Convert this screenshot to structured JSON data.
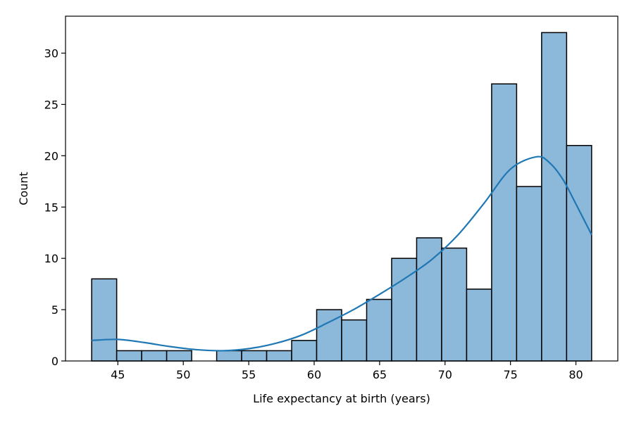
{
  "chart_data": {
    "type": "bar",
    "subtype": "histogram",
    "title": "",
    "xlabel": "Life expectancy at birth (years)",
    "ylabel": "Count",
    "xlim": [
      41.0,
      83.2
    ],
    "ylim": [
      0,
      33.6
    ],
    "x_ticks": [
      45,
      50,
      55,
      60,
      65,
      70,
      75,
      80
    ],
    "y_ticks": [
      0,
      5,
      10,
      15,
      20,
      25,
      30
    ],
    "grid": false,
    "bar_color": "#8cb8da",
    "bar_edge_color": "#000000",
    "kde_color": "#1f77b4",
    "bins": [
      {
        "start": 43.0,
        "end": 44.91,
        "count": 8
      },
      {
        "start": 44.91,
        "end": 46.82,
        "count": 1
      },
      {
        "start": 46.82,
        "end": 48.73,
        "count": 1
      },
      {
        "start": 48.73,
        "end": 50.64,
        "count": 1
      },
      {
        "start": 50.64,
        "end": 52.55,
        "count": 0
      },
      {
        "start": 52.55,
        "end": 54.46,
        "count": 1
      },
      {
        "start": 54.46,
        "end": 56.37,
        "count": 1
      },
      {
        "start": 56.37,
        "end": 58.28,
        "count": 1
      },
      {
        "start": 58.28,
        "end": 60.19,
        "count": 2
      },
      {
        "start": 60.19,
        "end": 62.1,
        "count": 5
      },
      {
        "start": 62.1,
        "end": 64.01,
        "count": 4
      },
      {
        "start": 64.01,
        "end": 65.92,
        "count": 6
      },
      {
        "start": 65.92,
        "end": 67.83,
        "count": 10
      },
      {
        "start": 67.83,
        "end": 69.74,
        "count": 12
      },
      {
        "start": 69.74,
        "end": 71.65,
        "count": 11
      },
      {
        "start": 71.65,
        "end": 73.56,
        "count": 7
      },
      {
        "start": 73.56,
        "end": 75.47,
        "count": 27
      },
      {
        "start": 75.47,
        "end": 77.38,
        "count": 17
      },
      {
        "start": 77.38,
        "end": 79.29,
        "count": 32
      },
      {
        "start": 79.29,
        "end": 81.2,
        "count": 21
      }
    ],
    "kde_curve": [
      {
        "x": 43.0,
        "y": 2.0
      },
      {
        "x": 45.0,
        "y": 2.1
      },
      {
        "x": 47.0,
        "y": 1.8
      },
      {
        "x": 49.0,
        "y": 1.4
      },
      {
        "x": 51.0,
        "y": 1.1
      },
      {
        "x": 53.0,
        "y": 1.0
      },
      {
        "x": 55.0,
        "y": 1.2
      },
      {
        "x": 57.0,
        "y": 1.7
      },
      {
        "x": 59.0,
        "y": 2.5
      },
      {
        "x": 61.0,
        "y": 3.7
      },
      {
        "x": 63.0,
        "y": 5.0
      },
      {
        "x": 65.0,
        "y": 6.5
      },
      {
        "x": 67.0,
        "y": 8.1
      },
      {
        "x": 69.0,
        "y": 9.9
      },
      {
        "x": 71.0,
        "y": 12.3
      },
      {
        "x": 73.0,
        "y": 15.4
      },
      {
        "x": 75.0,
        "y": 18.7
      },
      {
        "x": 77.0,
        "y": 19.9
      },
      {
        "x": 78.0,
        "y": 19.3
      },
      {
        "x": 79.0,
        "y": 17.7
      },
      {
        "x": 80.0,
        "y": 15.3
      },
      {
        "x": 81.2,
        "y": 12.3
      }
    ]
  }
}
